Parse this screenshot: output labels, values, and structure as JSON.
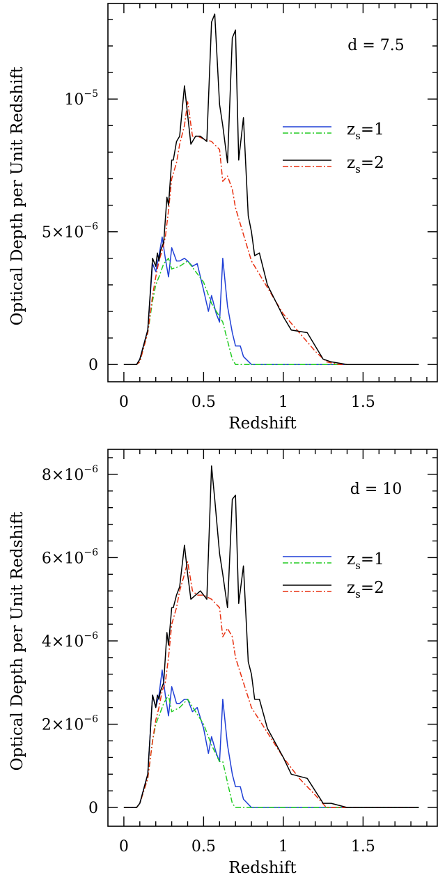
{
  "chart_data": [
    {
      "type": "line",
      "annotation": "d  =  7.5",
      "xlabel": "Redshift",
      "ylabel": "Optical Depth per Unit Redshift",
      "xlim": [
        -0.1,
        1.97
      ],
      "ylim": [
        -6.5e-07,
        1.36e-05
      ],
      "xticks": [
        {
          "v": 0,
          "label": "0"
        },
        {
          "v": 0.5,
          "label": "0.5"
        },
        {
          "v": 1,
          "label": "1"
        },
        {
          "v": 1.5,
          "label": "1.5"
        }
      ],
      "yticks": [
        {
          "v": 0,
          "label": "0",
          "base": "0",
          "exp": ""
        },
        {
          "v": 5e-06,
          "label": "5×10^-6",
          "base": "5×10",
          "exp": "−6"
        },
        {
          "v": 1e-05,
          "label": "10^-5",
          "base": "10",
          "exp": "−5"
        }
      ],
      "legend": [
        {
          "label": "zs=1",
          "main": "z",
          "sub": "s",
          "rest": "=1",
          "colors": [
            "#1f3fd6",
            "#22cc22"
          ]
        },
        {
          "label": "zs=2",
          "main": "z",
          "sub": "s",
          "rest": "=2",
          "colors": [
            "#000000",
            "#e83010"
          ]
        }
      ],
      "series": [
        {
          "name": "zs=1",
          "color": "#1f3fd6",
          "dash": "",
          "x": [
            0,
            0.05,
            0.08,
            0.1,
            0.15,
            0.18,
            0.2,
            0.22,
            0.24,
            0.26,
            0.28,
            0.3,
            0.33,
            0.35,
            0.38,
            0.4,
            0.43,
            0.46,
            0.5,
            0.53,
            0.55,
            0.58,
            0.6,
            0.62,
            0.65,
            0.68,
            0.7,
            0.73,
            0.75,
            0.8,
            1,
            1.5,
            1.85
          ],
          "y": [
            0,
            0,
            0,
            2e-07,
            1.3e-06,
            3.8e-06,
            3.5e-06,
            4.1e-06,
            4.8e-06,
            4e-06,
            3.3e-06,
            4.4e-06,
            3.9e-06,
            3.9e-06,
            4e-06,
            3.9e-06,
            3.7e-06,
            3.8e-06,
            2.8e-06,
            2e-06,
            2.6e-06,
            1.9e-06,
            1.6e-06,
            4e-06,
            2.2e-06,
            1.2e-06,
            7e-07,
            7e-07,
            3e-07,
            0,
            0,
            0,
            0
          ]
        },
        {
          "name": "zs=1",
          "color": "#22cc22",
          "dash": "8,3,2,3",
          "x": [
            0,
            0.05,
            0.08,
            0.1,
            0.15,
            0.18,
            0.2,
            0.22,
            0.25,
            0.28,
            0.3,
            0.35,
            0.4,
            0.5,
            0.55,
            0.6,
            0.62,
            0.65,
            0.68,
            0.7,
            0.75,
            0.8,
            1,
            1.5,
            1.85
          ],
          "y": [
            0,
            0,
            0,
            1e-07,
            1.2e-06,
            2.4e-06,
            3e-06,
            3.3e-06,
            3.8e-06,
            4e-06,
            3.6e-06,
            3.7e-06,
            3.9e-06,
            3.1e-06,
            2.3e-06,
            1.8e-06,
            1.6e-06,
            9e-07,
            2e-07,
            0,
            0,
            0,
            0,
            0,
            0
          ]
        },
        {
          "name": "zs=2",
          "color": "#e83010",
          "dash": "8,3,2,3",
          "x": [
            0,
            0.05,
            0.08,
            0.1,
            0.15,
            0.18,
            0.2,
            0.22,
            0.24,
            0.26,
            0.28,
            0.3,
            0.33,
            0.35,
            0.38,
            0.4,
            0.43,
            0.46,
            0.5,
            0.55,
            0.6,
            0.62,
            0.65,
            0.68,
            0.7,
            0.75,
            0.8,
            0.9,
            1,
            1.1,
            1.2,
            1.27,
            1.35,
            1.5,
            1.85
          ],
          "y": [
            0,
            0,
            0,
            1e-07,
            1.2e-06,
            2.6e-06,
            3.3e-06,
            3.9e-06,
            4.3e-06,
            4.8e-06,
            5.8e-06,
            7e-06,
            7.6e-06,
            8.3e-06,
            9e-06,
            9.9e-06,
            8.6e-06,
            8.6e-06,
            8.5e-06,
            8.4e-06,
            8.1e-06,
            6.9e-06,
            7.1e-06,
            6.6e-06,
            5.9e-06,
            4.9e-06,
            3.9e-06,
            2.9e-06,
            1.9e-06,
            1.2e-06,
            5e-07,
            1e-07,
            0,
            0,
            0
          ]
        },
        {
          "name": "zs=2",
          "color": "#000000",
          "dash": "",
          "x": [
            0,
            0.05,
            0.08,
            0.1,
            0.15,
            0.18,
            0.2,
            0.21,
            0.22,
            0.23,
            0.25,
            0.27,
            0.28,
            0.3,
            0.31,
            0.33,
            0.35,
            0.38,
            0.4,
            0.42,
            0.45,
            0.48,
            0.5,
            0.52,
            0.55,
            0.57,
            0.6,
            0.62,
            0.65,
            0.68,
            0.7,
            0.72,
            0.75,
            0.78,
            0.8,
            0.82,
            0.85,
            0.9,
            1,
            1.05,
            1.15,
            1.25,
            1.3,
            1.4,
            1.5,
            1.85
          ],
          "y": [
            0,
            0,
            0,
            2e-07,
            1.3e-06,
            4e-06,
            3.7e-06,
            4.2e-06,
            3.9e-06,
            4.3e-06,
            4.6e-06,
            6.3e-06,
            6e-06,
            7.7e-06,
            7.7e-06,
            8.4e-06,
            8.6e-06,
            1.05e-05,
            9.4e-06,
            8.3e-06,
            8.6e-06,
            8.6e-06,
            8.5e-06,
            8.4e-06,
            1.29e-05,
            1.32e-05,
            9.8e-06,
            9e-06,
            7.6e-06,
            1.23e-05,
            1.26e-05,
            7.7e-06,
            9.3e-06,
            5.6e-06,
            5e-06,
            4.1e-06,
            4.2e-06,
            3e-06,
            1.8e-06,
            1.3e-06,
            1.2e-06,
            2e-07,
            1e-07,
            0,
            0,
            0
          ]
        }
      ]
    },
    {
      "type": "line",
      "annotation": "d  =  10",
      "xlabel": "Redshift",
      "ylabel": "Optical Depth per Unit Redshift",
      "xlim": [
        -0.1,
        1.97
      ],
      "ylim": [
        -4.5e-07,
        8.6e-06
      ],
      "xticks": [
        {
          "v": 0,
          "label": "0"
        },
        {
          "v": 0.5,
          "label": "0.5"
        },
        {
          "v": 1,
          "label": "1"
        },
        {
          "v": 1.5,
          "label": "1.5"
        }
      ],
      "yticks": [
        {
          "v": 0,
          "label": "0",
          "base": "0",
          "exp": ""
        },
        {
          "v": 2e-06,
          "label": "2×10^-6",
          "base": "2×10",
          "exp": "−6"
        },
        {
          "v": 4e-06,
          "label": "4×10^-6",
          "base": "4×10",
          "exp": "−6"
        },
        {
          "v": 6e-06,
          "label": "6×10^-6",
          "base": "6×10",
          "exp": "−6"
        },
        {
          "v": 8e-06,
          "label": "8×10^-6",
          "base": "8×10",
          "exp": "−6"
        }
      ],
      "legend": [
        {
          "label": "zs=1",
          "main": "z",
          "sub": "s",
          "rest": "=1",
          "colors": [
            "#1f3fd6",
            "#22cc22"
          ]
        },
        {
          "label": "zs=2",
          "main": "z",
          "sub": "s",
          "rest": "=2",
          "colors": [
            "#000000",
            "#e83010"
          ]
        }
      ],
      "series": [
        {
          "name": "zs=1",
          "color": "#1f3fd6",
          "dash": "",
          "x": [
            0,
            0.05,
            0.08,
            0.1,
            0.15,
            0.18,
            0.2,
            0.22,
            0.24,
            0.26,
            0.28,
            0.3,
            0.33,
            0.35,
            0.38,
            0.4,
            0.43,
            0.46,
            0.5,
            0.53,
            0.55,
            0.58,
            0.6,
            0.62,
            0.65,
            0.68,
            0.7,
            0.73,
            0.75,
            0.8,
            1,
            1.5,
            1.85
          ],
          "y": [
            0,
            0,
            0,
            1e-07,
            8e-07,
            2.7e-06,
            2.4e-06,
            2.7e-06,
            3.3e-06,
            2.7e-06,
            2.2e-06,
            2.9e-06,
            2.5e-06,
            2.5e-06,
            2.6e-06,
            2.6e-06,
            2.3e-06,
            2.4e-06,
            1.9e-06,
            1.3e-06,
            1.7e-06,
            1.3e-06,
            1.1e-06,
            2.6e-06,
            1.5e-06,
            8e-07,
            5e-07,
            5e-07,
            2e-07,
            0,
            0,
            0,
            0
          ]
        },
        {
          "name": "zs=1",
          "color": "#22cc22",
          "dash": "8,3,2,3",
          "x": [
            0,
            0.05,
            0.08,
            0.1,
            0.15,
            0.18,
            0.2,
            0.22,
            0.25,
            0.28,
            0.3,
            0.35,
            0.4,
            0.5,
            0.55,
            0.6,
            0.62,
            0.65,
            0.68,
            0.7,
            0.75,
            0.8,
            1,
            1.5,
            1.85
          ],
          "y": [
            0,
            0,
            0,
            1e-07,
            7e-07,
            1.6e-06,
            2e-06,
            2.2e-06,
            2.5e-06,
            2.7e-06,
            2.3e-06,
            2.4e-06,
            2.6e-06,
            2e-06,
            1.5e-06,
            1.1e-06,
            1.1e-06,
            6e-07,
            1e-07,
            0,
            0,
            0,
            0,
            0,
            0
          ]
        },
        {
          "name": "zs=2",
          "color": "#e83010",
          "dash": "8,3,2,3",
          "x": [
            0,
            0.05,
            0.08,
            0.1,
            0.15,
            0.18,
            0.2,
            0.22,
            0.24,
            0.26,
            0.28,
            0.3,
            0.33,
            0.35,
            0.38,
            0.4,
            0.43,
            0.46,
            0.5,
            0.55,
            0.6,
            0.62,
            0.65,
            0.68,
            0.7,
            0.75,
            0.8,
            0.9,
            1,
            1.1,
            1.2,
            1.27,
            1.35,
            1.5,
            1.85
          ],
          "y": [
            0,
            0,
            0,
            1e-07,
            7e-07,
            1.6e-06,
            2.1e-06,
            2.4e-06,
            2.8e-06,
            3e-06,
            3.6e-06,
            4.4e-06,
            4.8e-06,
            5.2e-06,
            5.6e-06,
            5.9e-06,
            5.2e-06,
            5.1e-06,
            5.1e-06,
            5e-06,
            4.8e-06,
            4.1e-06,
            4.3e-06,
            4.1e-06,
            3.6e-06,
            3e-06,
            2.4e-06,
            1.8e-06,
            1.2e-06,
            7e-07,
            3e-07,
            0,
            0,
            0,
            0
          ]
        },
        {
          "name": "zs=2",
          "color": "#000000",
          "dash": "",
          "x": [
            0,
            0.05,
            0.08,
            0.1,
            0.15,
            0.18,
            0.2,
            0.21,
            0.22,
            0.23,
            0.25,
            0.27,
            0.28,
            0.3,
            0.31,
            0.33,
            0.35,
            0.38,
            0.4,
            0.42,
            0.45,
            0.48,
            0.5,
            0.52,
            0.55,
            0.57,
            0.6,
            0.62,
            0.65,
            0.68,
            0.7,
            0.72,
            0.75,
            0.78,
            0.8,
            0.82,
            0.85,
            0.9,
            1,
            1.05,
            1.15,
            1.25,
            1.3,
            1.4,
            1.5,
            1.85
          ],
          "y": [
            0,
            0,
            0,
            1e-07,
            8e-07,
            2.7e-06,
            2.4e-06,
            2.7e-06,
            2.6e-06,
            2.8e-06,
            3e-06,
            4.2e-06,
            3.9e-06,
            4.8e-06,
            4.8e-06,
            5.1e-06,
            5.3e-06,
            6.3e-06,
            5.6e-06,
            5e-06,
            5.1e-06,
            5.2e-06,
            5.1e-06,
            5e-06,
            8.2e-06,
            7.4e-06,
            6.1e-06,
            5.6e-06,
            4.8e-06,
            7.4e-06,
            7.5e-06,
            4.9e-06,
            5.8e-06,
            3.5e-06,
            3.2e-06,
            2.6e-06,
            2.6e-06,
            1.9e-06,
            1.2e-06,
            8e-07,
            7e-07,
            1e-07,
            1e-07,
            0,
            0,
            0
          ]
        }
      ]
    }
  ]
}
